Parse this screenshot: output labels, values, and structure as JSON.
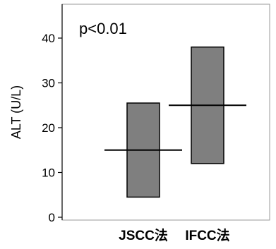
{
  "chart_data": {
    "type": "bar",
    "subtype": "floating-range",
    "annotation": "p<0.01",
    "ylabel": "ALT (U/L)",
    "xlabel": "",
    "ylim": [
      0,
      45
    ],
    "yticks": [
      0,
      10,
      20,
      30,
      40
    ],
    "categories": [
      "JSCC法",
      "IFCC法"
    ],
    "series": [
      {
        "low": [
          4.5,
          12
        ],
        "high": [
          25.5,
          38
        ],
        "median": [
          15,
          25
        ]
      }
    ],
    "grid": false,
    "legend": "none",
    "colors": {
      "bar_fill": "#7f7f7f",
      "bar_stroke": "#000000",
      "median_line": "#000000",
      "frame": "#9a9a9a",
      "axis": "#000000"
    }
  }
}
